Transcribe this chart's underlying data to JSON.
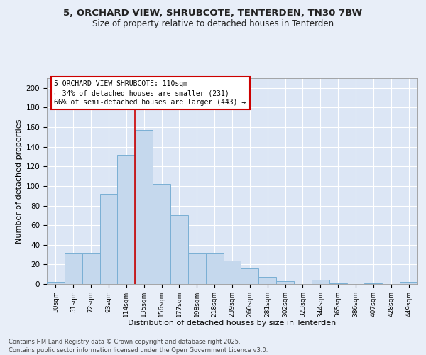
{
  "title_line1": "5, ORCHARD VIEW, SHRUBCOTE, TENTERDEN, TN30 7BW",
  "title_line2": "Size of property relative to detached houses in Tenterden",
  "xlabel": "Distribution of detached houses by size in Tenterden",
  "ylabel": "Number of detached properties",
  "categories": [
    "30sqm",
    "51sqm",
    "72sqm",
    "93sqm",
    "114sqm",
    "135sqm",
    "156sqm",
    "177sqm",
    "198sqm",
    "218sqm",
    "239sqm",
    "260sqm",
    "281sqm",
    "302sqm",
    "323sqm",
    "344sqm",
    "365sqm",
    "386sqm",
    "407sqm",
    "428sqm",
    "449sqm"
  ],
  "values": [
    2,
    31,
    31,
    92,
    131,
    157,
    102,
    70,
    31,
    31,
    24,
    16,
    7,
    3,
    0,
    4,
    1,
    0,
    1,
    0,
    2
  ],
  "bar_color": "#c5d8ed",
  "bar_edge_color": "#7aafd4",
  "vline_color": "#cc0000",
  "annotation_text": "5 ORCHARD VIEW SHRUBCOTE: 110sqm\n← 34% of detached houses are smaller (231)\n66% of semi-detached houses are larger (443) →",
  "annotation_box_color": "#ffffff",
  "annotation_box_edge": "#cc0000",
  "ylim": [
    0,
    210
  ],
  "yticks": [
    0,
    20,
    40,
    60,
    80,
    100,
    120,
    140,
    160,
    180,
    200
  ],
  "bg_color": "#dce6f5",
  "fig_bg_color": "#e8eef8",
  "footer_line1": "Contains HM Land Registry data © Crown copyright and database right 2025.",
  "footer_line2": "Contains public sector information licensed under the Open Government Licence v3.0."
}
